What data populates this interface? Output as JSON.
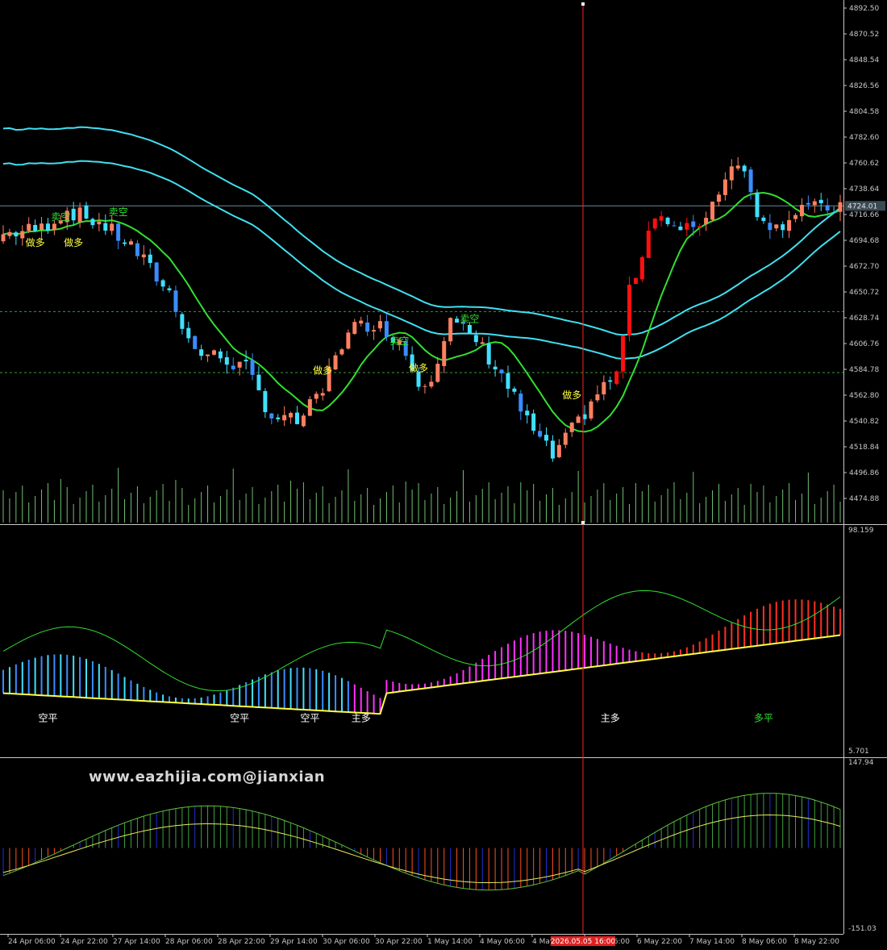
{
  "watermark": "www.eazhijia.com@jianxian",
  "colors": {
    "background": "#000000",
    "bull_candle": "#ff8060",
    "bull_candle_strong": "#ff1010",
    "bear_candle": "#40e0ff",
    "bear_candle_alt": "#3a8cff",
    "ma_fast": "#30e030",
    "ma_fast_up": "#ff2020",
    "ma_slow_cyan": "#40e0f0",
    "ma_slow_magenta": "#ff30ff",
    "volume": "#70c070",
    "crosshair": "#ff2020",
    "hist_cyan": "#40e0ff",
    "hist_blue": "#3a8cff",
    "hist_magenta": "#ff30ff",
    "hist_red": "#ff3020",
    "hist_green": "#40a040",
    "hist_darkblue": "#2030d0",
    "hist_orange": "#ff5020"
  },
  "main_chart": {
    "price_axis": [
      "4892.50",
      "4870.52",
      "4848.54",
      "4826.56",
      "4804.58",
      "4782.60",
      "4760.62",
      "4738.64",
      "4716.66",
      "4694.68",
      "4672.70",
      "4650.72",
      "4628.74",
      "4606.76",
      "4584.78",
      "4562.80",
      "4540.82",
      "4518.84",
      "4496.86",
      "4474.88"
    ],
    "current_price": "4724.01",
    "signals": [
      {
        "text": "做多",
        "price": 4690,
        "bar": 5
      },
      {
        "text": "卖空",
        "price": 4712,
        "bar": 9
      },
      {
        "text": "做多",
        "price": 4690,
        "bar": 11
      },
      {
        "text": "卖空",
        "price": 4716,
        "bar": 18
      },
      {
        "text": "做多",
        "price": 4581,
        "bar": 50
      },
      {
        "text": "卖空",
        "price": 4606,
        "bar": 62
      },
      {
        "text": "做多",
        "price": 4583,
        "bar": 65
      },
      {
        "text": "卖空",
        "price": 4625,
        "bar": 73
      },
      {
        "text": "做多",
        "price": 4560,
        "bar": 89
      }
    ]
  },
  "oscillator": {
    "axis_top": "98.159",
    "axis_bottom": "5.701",
    "labels": [
      {
        "text": "空平",
        "color": "#ffffff",
        "bar": 7
      },
      {
        "text": "空平",
        "color": "#ffffff",
        "bar": 37
      },
      {
        "text": "空平",
        "color": "#ffffff",
        "bar": 48
      },
      {
        "text": "主多",
        "color": "#ffffff",
        "bar": 56
      },
      {
        "text": "主多",
        "color": "#ffffff",
        "bar": 95
      },
      {
        "text": "多平",
        "color": "#30e030",
        "bar": 119
      }
    ]
  },
  "macd": {
    "axis_top": "147.94",
    "axis_bottom": "-151.03"
  },
  "time_axis": [
    "24 Apr 06:00",
    "24 Apr 22:00",
    "27 Apr 14:00",
    "28 Apr 06:00",
    "28 Apr 22:00",
    "29 Apr 14:00",
    "30 Apr 06:00",
    "30 Apr 22:00",
    "1 May 14:00",
    "4 May 06:00",
    "4 May 2",
    "6 May 06:00",
    "6 May 22:00",
    "7 May 14:00",
    "8 May 06:00",
    "8 May 22:00"
  ],
  "crosshair_time": "2026.05.05 16:00"
}
